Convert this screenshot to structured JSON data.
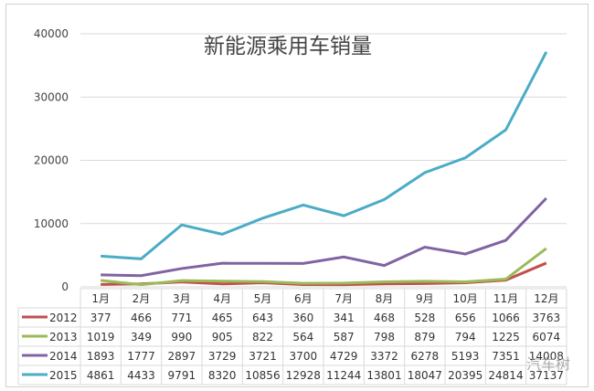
{
  "chart_data": {
    "type": "line",
    "title": "新能源乘用车销量",
    "categories": [
      "1月",
      "2月",
      "3月",
      "4月",
      "5月",
      "6月",
      "7月",
      "8月",
      "9月",
      "10月",
      "11月",
      "12月"
    ],
    "ylim": [
      0,
      40000
    ],
    "yticks": [
      0,
      10000,
      20000,
      30000,
      40000
    ],
    "grid": true,
    "legend": "bottom (data table)",
    "series": [
      {
        "name": "2012",
        "color": "#c0504d",
        "values": [
          377,
          466,
          771,
          465,
          643,
          360,
          341,
          468,
          528,
          656,
          1066,
          3763
        ]
      },
      {
        "name": "2013",
        "color": "#9bbb59",
        "values": [
          1019,
          349,
          990,
          905,
          822,
          564,
          587,
          798,
          879,
          794,
          1225,
          6074
        ]
      },
      {
        "name": "2014",
        "color": "#8064a2",
        "values": [
          1893,
          1777,
          2897,
          3729,
          3721,
          3700,
          4729,
          3372,
          6278,
          5193,
          7351,
          14008
        ]
      },
      {
        "name": "2015",
        "color": "#4bacc6",
        "values": [
          4861,
          4433,
          9791,
          8320,
          10856,
          12928,
          11244,
          13801,
          18047,
          20395,
          24814,
          37137
        ]
      }
    ]
  },
  "watermark": "汽车树"
}
